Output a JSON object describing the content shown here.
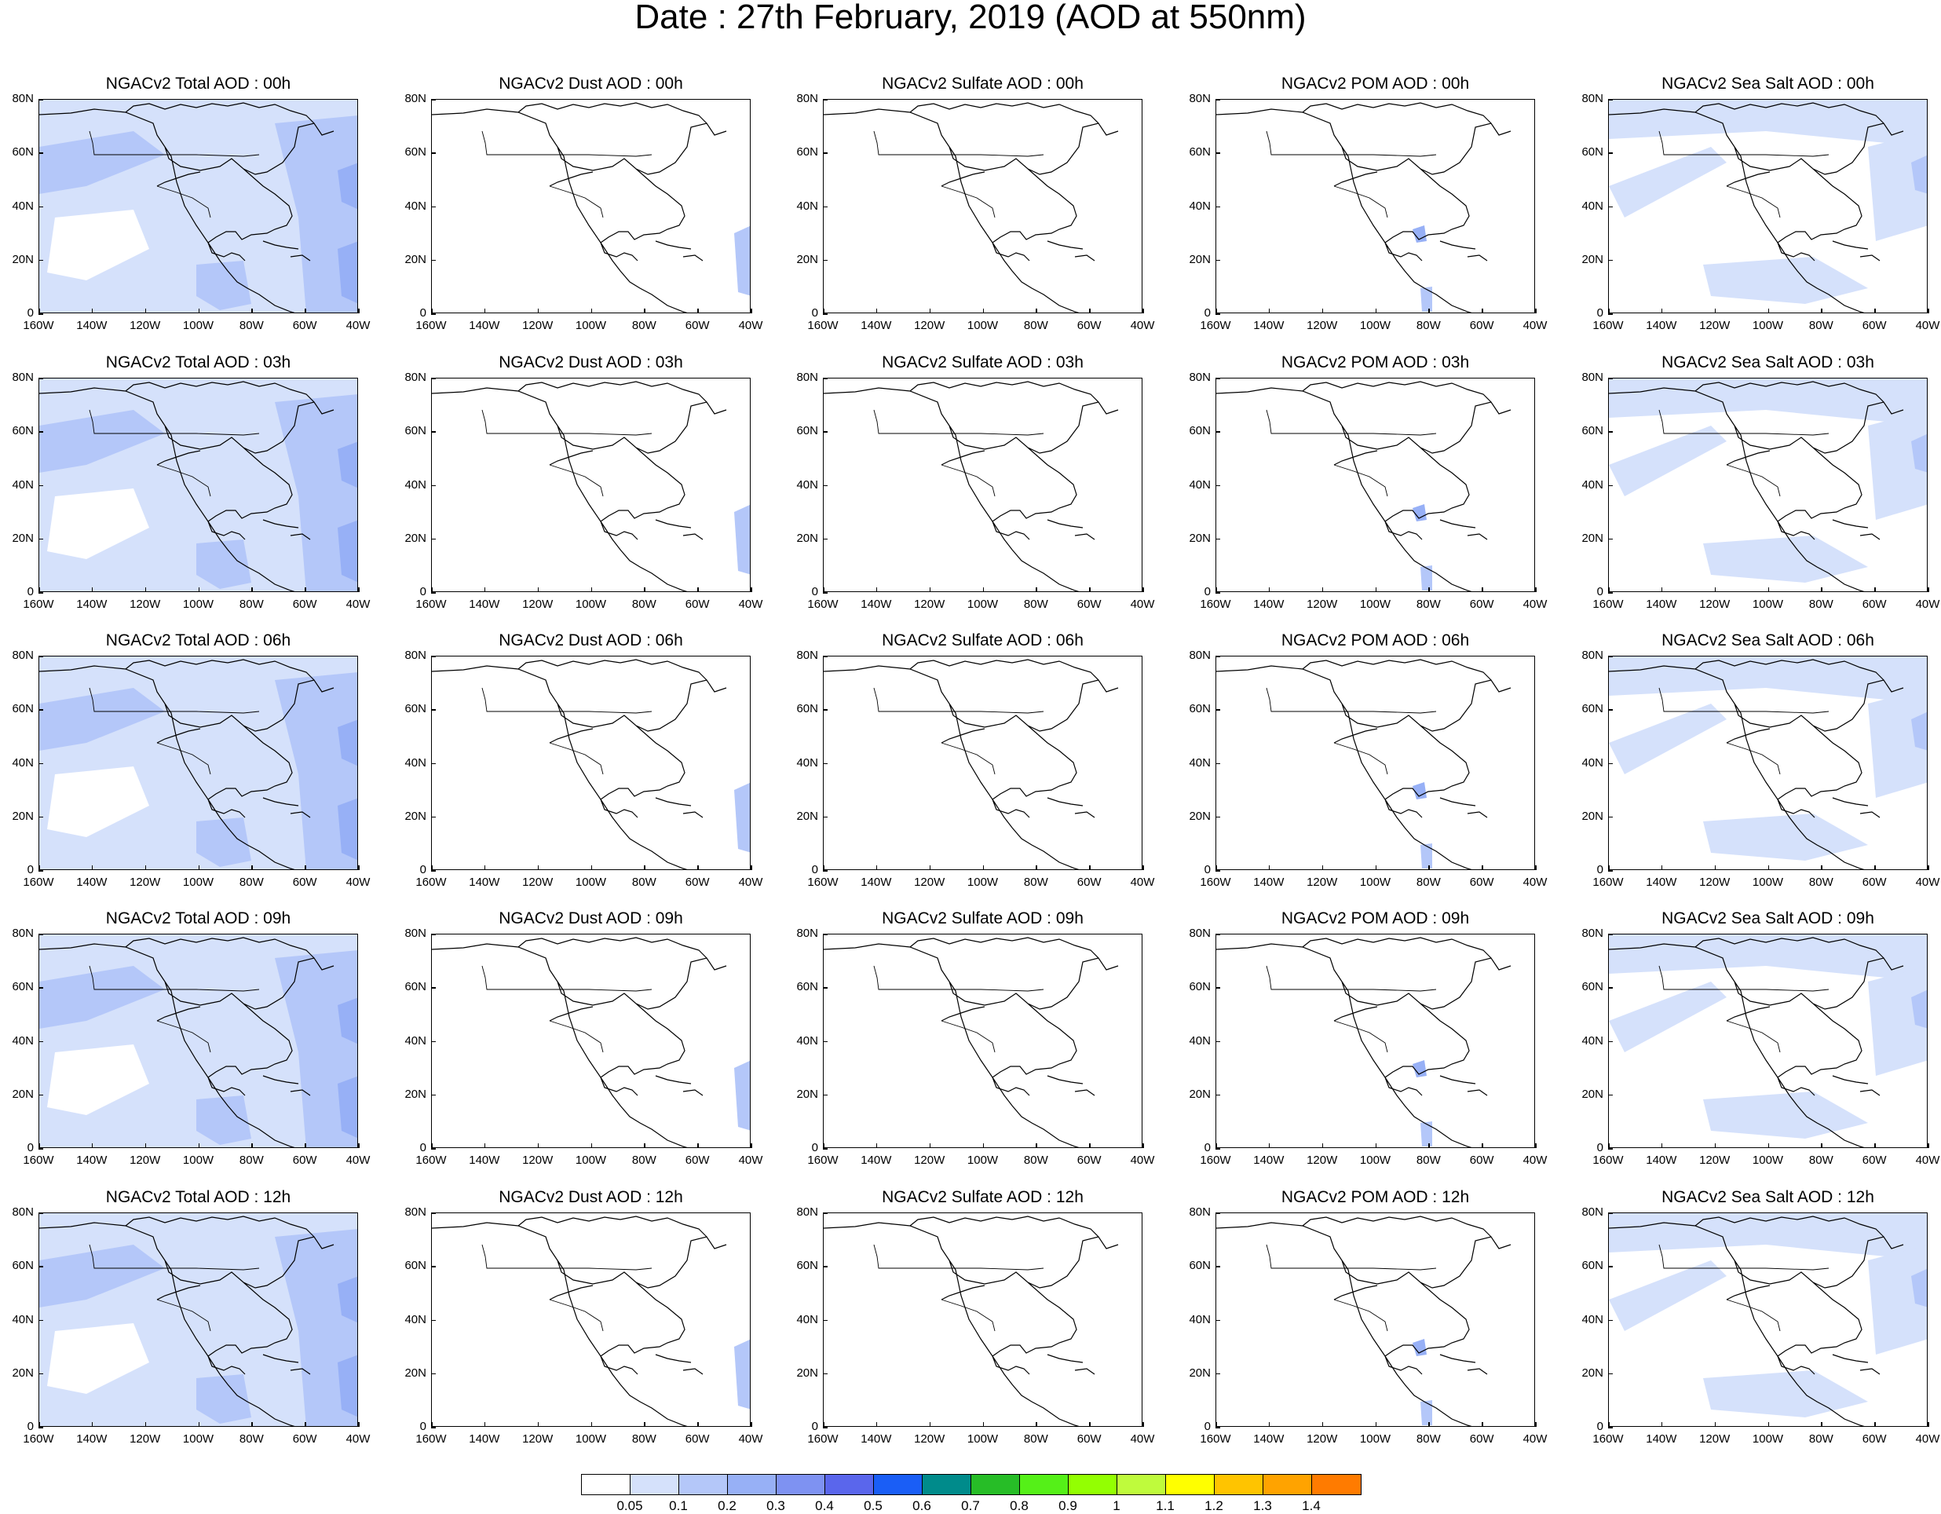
{
  "title": "Date : 27th February, 2019 (AOD at 550nm)",
  "map": {
    "lat_labels": [
      "80N",
      "60N",
      "40N",
      "20N",
      "0"
    ],
    "lon_labels": [
      "160W",
      "140W",
      "120W",
      "100W",
      "80W",
      "60W",
      "40W"
    ],
    "lat_range": [
      0,
      80
    ],
    "lon_range": [
      -160,
      -40
    ]
  },
  "panels": [
    [
      "NGACv2 Total AOD : 00h",
      "NGACv2 Dust AOD : 00h",
      "NGACv2 Sulfate AOD : 00h",
      "NGACv2 POM AOD : 00h",
      "NGACv2 Sea Salt AOD : 00h"
    ],
    [
      "NGACv2 Total AOD : 03h",
      "NGACv2 Dust AOD : 03h",
      "NGACv2 Sulfate AOD : 03h",
      "NGACv2 POM AOD : 03h",
      "NGACv2 Sea Salt AOD : 03h"
    ],
    [
      "NGACv2 Total AOD : 06h",
      "NGACv2 Dust AOD : 06h",
      "NGACv2 Sulfate AOD : 06h",
      "NGACv2 POM AOD : 06h",
      "NGACv2 Sea Salt AOD : 06h"
    ],
    [
      "NGACv2 Total AOD : 09h",
      "NGACv2 Dust AOD : 09h",
      "NGACv2 Sulfate AOD : 09h",
      "NGACv2 POM AOD : 09h",
      "NGACv2 Sea Salt  AOD : 09h"
    ],
    [
      "NGACv2 Total AOD  : 12h",
      "NGACv2 Dust AOD : 12h",
      "NGACv2 Sulfate AOD : 12h",
      "NGACv2 POM  AOD : 12h",
      "NGACv2 Sea Salt  AOD : 12h"
    ]
  ],
  "colorbar": {
    "labels": [
      "0.05",
      "0.1",
      "0.2",
      "0.3",
      "0.4",
      "0.5",
      "0.6",
      "0.7",
      "0.8",
      "0.9",
      "1",
      "1.1",
      "1.2",
      "1.3",
      "1.4"
    ],
    "colors": [
      "#ffffff",
      "#d5e1fb",
      "#b4c7f9",
      "#97b0f6",
      "#7e92f2",
      "#5a66ec",
      "#1a5ef6",
      "#008b8b",
      "#27bd27",
      "#55f018",
      "#93ff02",
      "#bffb3c",
      "#ffff00",
      "#ffc400",
      "#ffa300",
      "#ff7b00",
      "#ff2d14"
    ]
  }
}
